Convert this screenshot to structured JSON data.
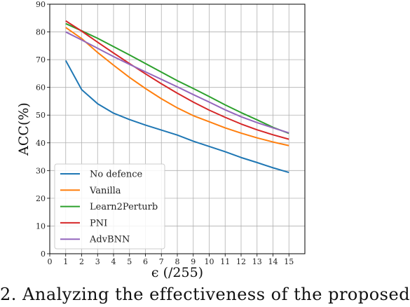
{
  "caption": "2. Analyzing the effectiveness of the proposed",
  "chart_data": {
    "type": "line",
    "x": [
      1,
      2,
      3,
      4,
      5,
      6,
      7,
      8,
      9,
      10,
      11,
      12,
      13,
      14,
      15
    ],
    "xlabel": "ϵ (/255)",
    "ylabel": "ACC(%)",
    "xlim": [
      0,
      16
    ],
    "ylim": [
      0,
      90
    ],
    "xticks": [
      0,
      1,
      2,
      3,
      4,
      5,
      6,
      7,
      8,
      9,
      10,
      11,
      12,
      13,
      14,
      15
    ],
    "yticks": [
      0,
      10,
      20,
      30,
      40,
      50,
      60,
      70,
      80,
      90
    ],
    "grid": true,
    "legend_position": "lower-left",
    "series": [
      {
        "name": "No defence",
        "color": "#1f77b4",
        "values": [
          69.7,
          59.2,
          54.1,
          50.7,
          48.4,
          46.4,
          44.6,
          42.8,
          40.6,
          38.7,
          36.8,
          34.7,
          32.9,
          31.0,
          29.3
        ]
      },
      {
        "name": "Vanilla",
        "color": "#ff7f0e",
        "values": [
          81.6,
          77.6,
          72.6,
          68.0,
          63.6,
          59.6,
          55.9,
          52.6,
          49.8,
          47.6,
          45.4,
          43.5,
          41.8,
          40.3,
          39.0
        ]
      },
      {
        "name": "Learn2Perturb",
        "color": "#2ca02c",
        "values": [
          83.0,
          80.4,
          77.7,
          74.7,
          71.7,
          68.6,
          65.5,
          62.4,
          59.6,
          56.7,
          53.7,
          50.9,
          48.3,
          45.6,
          43.4
        ]
      },
      {
        "name": "PNI",
        "color": "#d62728",
        "values": [
          84.0,
          80.3,
          76.3,
          72.4,
          68.6,
          64.9,
          61.3,
          57.9,
          54.7,
          51.8,
          49.2,
          46.8,
          44.7,
          42.9,
          41.3
        ]
      },
      {
        "name": "AdvBNN",
        "color": "#9467bd",
        "values": [
          80.0,
          77.1,
          74.1,
          71.1,
          68.3,
          65.6,
          62.9,
          60.2,
          57.4,
          54.7,
          51.9,
          49.4,
          47.3,
          45.4,
          43.6
        ]
      }
    ]
  }
}
